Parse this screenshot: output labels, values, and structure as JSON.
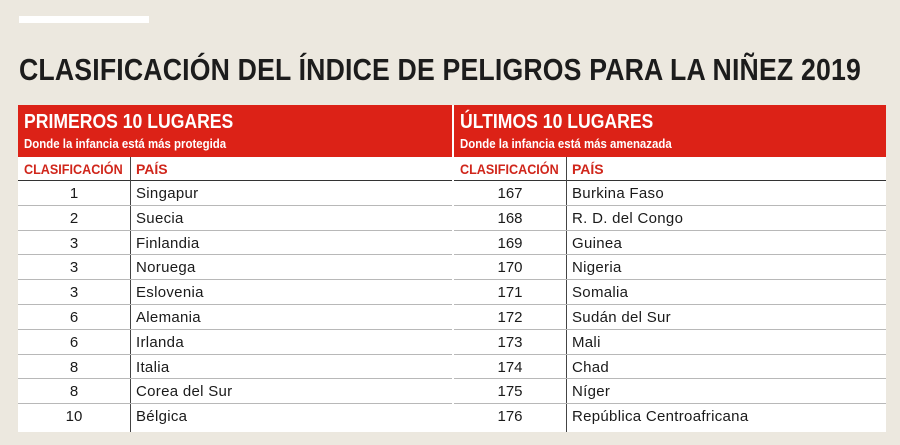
{
  "title": "CLASIFICACIÓN DEL ÍNDICE DE PELIGROS PARA LA NIÑEZ 2019",
  "left": {
    "heading": "PRIMEROS 10 LUGARES",
    "subheading": "Donde la infancia está más protegida",
    "col_rank": "CLASIFICACIÓN",
    "col_country": "PAÍS",
    "rows": [
      {
        "rank": "1",
        "country": "Singapur"
      },
      {
        "rank": "2",
        "country": "Suecia"
      },
      {
        "rank": "3",
        "country": "Finlandia"
      },
      {
        "rank": "3",
        "country": "Noruega"
      },
      {
        "rank": "3",
        "country": "Eslovenia"
      },
      {
        "rank": "6",
        "country": "Alemania"
      },
      {
        "rank": "6",
        "country": "Irlanda"
      },
      {
        "rank": "8",
        "country": "Italia"
      },
      {
        "rank": "8",
        "country": "Corea del Sur"
      },
      {
        "rank": "10",
        "country": "Bélgica"
      }
    ]
  },
  "right": {
    "heading": "ÚLTIMOS 10 LUGARES",
    "subheading": "Donde la infancia está más amenazada",
    "col_rank": "CLASIFICACIÓN",
    "col_country": "PAÍS",
    "rows": [
      {
        "rank": "167",
        "country": "Burkina Faso"
      },
      {
        "rank": "168",
        "country": "R. D. del Congo"
      },
      {
        "rank": "169",
        "country": "Guinea"
      },
      {
        "rank": "170",
        "country": "Nigeria"
      },
      {
        "rank": "171",
        "country": "Somalia"
      },
      {
        "rank": "172",
        "country": "Sudán del Sur"
      },
      {
        "rank": "173",
        "country": "Mali"
      },
      {
        "rank": "174",
        "country": "Chad"
      },
      {
        "rank": "175",
        "country": "Níger"
      },
      {
        "rank": "176",
        "country": "República Centroafricana"
      }
    ]
  },
  "colors": {
    "accent": "#dc2217",
    "background": "#ece8df"
  }
}
